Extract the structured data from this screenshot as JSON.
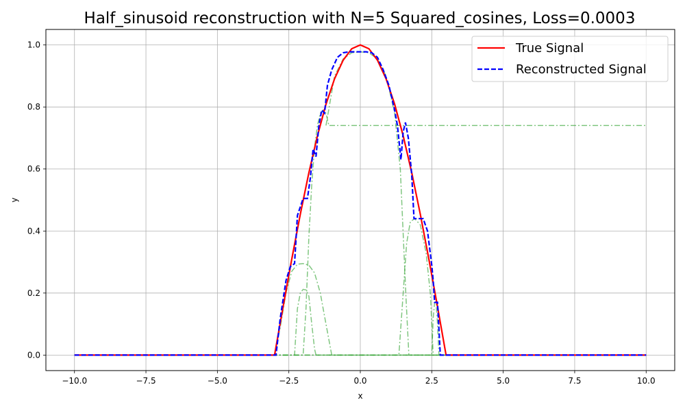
{
  "chart_data": {
    "type": "line",
    "title": "Half_sinusoid reconstruction with N=5 Squared_cosines, Loss=0.0003",
    "xlabel": "x",
    "ylabel": "y",
    "xlim": [
      -11.0,
      11.0
    ],
    "ylim": [
      -0.05,
      1.05
    ],
    "xticks": [
      -10.0,
      -7.5,
      -5.0,
      -2.5,
      0.0,
      2.5,
      5.0,
      7.5,
      10.0
    ],
    "xtick_labels": [
      "−10.0",
      "−7.5",
      "−5.0",
      "−2.5",
      "0.0",
      "2.5",
      "5.0",
      "7.5",
      "10.0"
    ],
    "yticks": [
      0.0,
      0.2,
      0.4,
      0.6,
      0.8,
      1.0
    ],
    "ytick_labels": [
      "0.0",
      "0.2",
      "0.4",
      "0.6",
      "0.8",
      "1.0"
    ],
    "grid": true,
    "legend_position": "top-right",
    "series": [
      {
        "name": "True Signal",
        "color": "#ff0000",
        "style": "solid",
        "x": [
          -10.0,
          -3.0,
          -2.7,
          -2.4,
          -2.1,
          -1.8,
          -1.5,
          -1.2,
          -0.9,
          -0.6,
          -0.3,
          0.0,
          0.3,
          0.6,
          0.9,
          1.2,
          1.5,
          1.8,
          2.1,
          2.4,
          2.7,
          3.0,
          10.0
        ],
        "y": [
          0.0,
          0.0,
          0.156,
          0.309,
          0.454,
          0.588,
          0.707,
          0.809,
          0.891,
          0.951,
          0.988,
          1.0,
          0.988,
          0.951,
          0.891,
          0.809,
          0.707,
          0.588,
          0.454,
          0.309,
          0.156,
          0.0,
          0.0
        ]
      },
      {
        "name": "Reconstructed Signal",
        "color": "#0000ff",
        "style": "dashed",
        "x": [
          -10.0,
          -2.95,
          -2.8,
          -2.6,
          -2.45,
          -2.3,
          -2.2,
          -2.0,
          -1.85,
          -1.75,
          -1.65,
          -1.55,
          -1.45,
          -1.35,
          -1.25,
          -1.15,
          -1.0,
          -0.8,
          -0.6,
          -0.4,
          -0.2,
          0.0,
          0.2,
          0.4,
          0.6,
          0.8,
          1.0,
          1.2,
          1.3,
          1.42,
          1.5,
          1.58,
          1.68,
          1.8,
          1.88,
          2.0,
          2.2,
          2.35,
          2.5,
          2.55,
          2.6,
          2.7,
          2.8,
          2.9,
          10.0
        ],
        "y": [
          0.0,
          0.0,
          0.12,
          0.24,
          0.285,
          0.295,
          0.45,
          0.505,
          0.505,
          0.57,
          0.665,
          0.64,
          0.74,
          0.79,
          0.78,
          0.87,
          0.92,
          0.96,
          0.975,
          0.978,
          0.978,
          0.978,
          0.978,
          0.975,
          0.96,
          0.92,
          0.87,
          0.79,
          0.74,
          0.63,
          0.72,
          0.75,
          0.7,
          0.58,
          0.44,
          0.44,
          0.44,
          0.4,
          0.29,
          0.24,
          0.17,
          0.17,
          0.0,
          0.0,
          0.0
        ]
      }
    ],
    "component_series": [
      {
        "color": "#2ca02c",
        "style": "dashdot",
        "x": [
          -10.0,
          -3.0,
          -2.8,
          -2.6,
          -2.4,
          -2.2,
          -2.0,
          -1.8,
          -1.6,
          -1.4,
          -1.2,
          -1.0,
          10.0
        ],
        "y": [
          0.0,
          0.0,
          0.09,
          0.2,
          0.27,
          0.293,
          0.295,
          0.29,
          0.265,
          0.2,
          0.1,
          0.0,
          0.0
        ]
      },
      {
        "color": "#2ca02c",
        "style": "dashdot",
        "x": [
          -10.0,
          -2.3,
          -2.2,
          -2.1,
          -2.0,
          -1.9,
          -1.8,
          -1.7,
          -1.6,
          -1.55,
          10.0
        ],
        "y": [
          0.0,
          0.0,
          0.15,
          0.2,
          0.212,
          0.21,
          0.19,
          0.1,
          0.02,
          0.0,
          0.0
        ]
      },
      {
        "color": "#2ca02c",
        "style": "dashdot",
        "x": [
          -10.0,
          -2.0,
          -1.9,
          -1.8,
          -1.7,
          -1.6,
          -1.5,
          -1.4,
          -1.3,
          -1.2,
          -1.1,
          10.0
        ],
        "y": [
          0.0,
          0.0,
          0.15,
          0.38,
          0.55,
          0.67,
          0.74,
          0.78,
          0.79,
          0.78,
          0.74,
          0.74
        ]
      },
      {
        "color": "#2ca02c",
        "style": "dashdot",
        "x": [
          -1.2,
          -0.9,
          -0.6,
          -0.3,
          0.0,
          0.3,
          0.6,
          0.9,
          1.2,
          1.4,
          1.6,
          1.7,
          10.0
        ],
        "y": [
          0.74,
          0.9,
          0.955,
          0.975,
          0.978,
          0.975,
          0.955,
          0.9,
          0.78,
          0.6,
          0.18,
          0.0,
          0.0
        ]
      },
      {
        "color": "#2ca02c",
        "style": "dashdot",
        "x": [
          -10.0,
          1.35,
          1.5,
          1.62,
          1.75,
          1.9,
          2.1,
          2.3,
          2.45,
          2.55,
          10.0
        ],
        "y": [
          0.0,
          0.0,
          0.2,
          0.36,
          0.43,
          0.44,
          0.42,
          0.33,
          0.2,
          0.0,
          0.0
        ]
      },
      {
        "color": "#2ca02c",
        "style": "dashdot",
        "x": [
          -10.0,
          2.5,
          2.55,
          2.6,
          2.65,
          2.7,
          2.75,
          10.0
        ],
        "y": [
          0.0,
          0.0,
          0.12,
          0.17,
          0.17,
          0.1,
          0.0,
          0.0
        ]
      }
    ]
  }
}
